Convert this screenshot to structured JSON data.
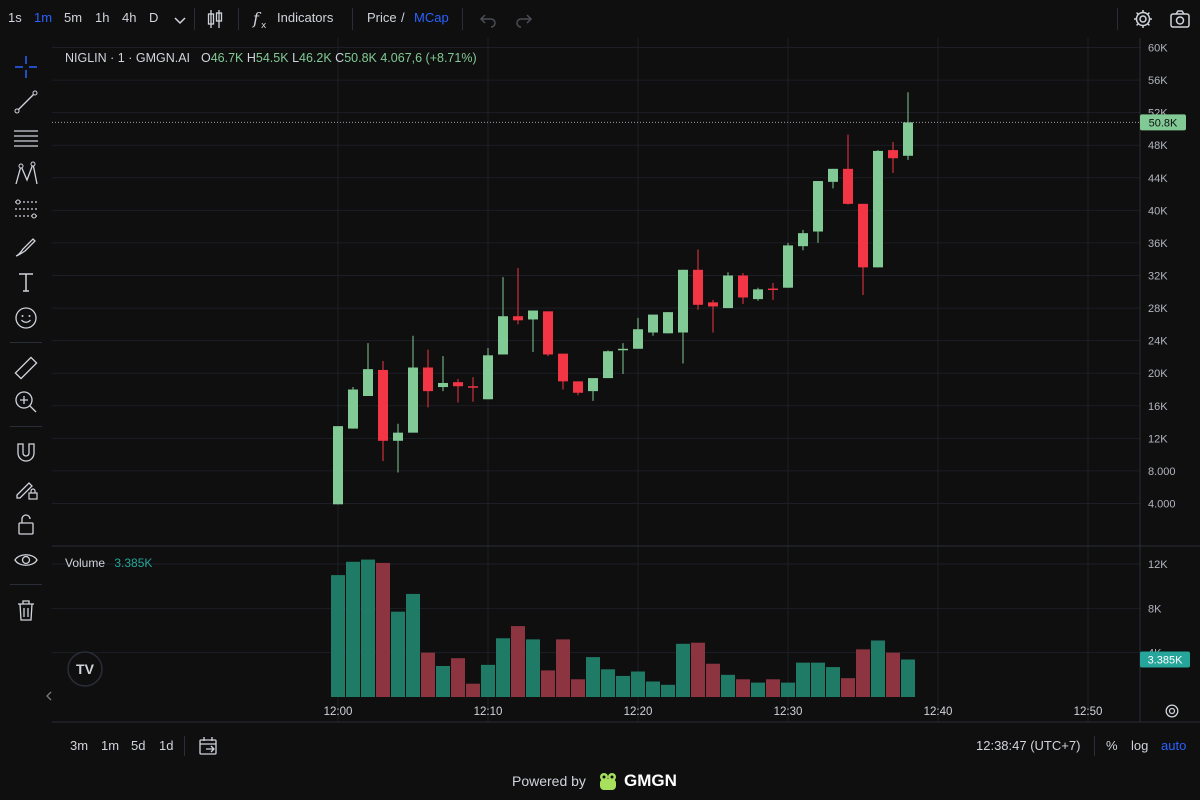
{
  "toolbar": {
    "intervals": [
      "1s",
      "1m",
      "5m",
      "1h",
      "4h",
      "D"
    ],
    "active_interval": "1m",
    "indicators_label": "Indicators",
    "price_label": "Price",
    "price_sep": "/",
    "mcap_label": "MCap"
  },
  "legend": {
    "symbol": "NIGLIN · 1 · GMGN.AI",
    "o_label": "O",
    "o_value": "46.7K",
    "h_label": "H",
    "h_value": "54.5K",
    "l_label": "L",
    "l_value": "46.2K",
    "c_label": "C",
    "c_value": "50.8K",
    "change": "4.067,6 (+8.71%)"
  },
  "volume_legend": {
    "label": "Volume",
    "value": "3.385K"
  },
  "price_badge": "50.8K",
  "volume_badge": "3.385K",
  "bottom": {
    "ranges": [
      "3m",
      "1m",
      "5d",
      "1d"
    ],
    "clock": "12:38:47 (UTC+7)",
    "percent": "%",
    "log": "log",
    "auto": "auto"
  },
  "footer": {
    "powered_by": "Powered by",
    "brand": "GMGN"
  },
  "colors": {
    "up": "#81c995",
    "down": "#f23645",
    "up_vol": "#1f7a66",
    "down_vol": "#8c3440",
    "accent": "#2962ff",
    "bg": "#0f0f0f"
  },
  "chart_data": {
    "type": "candlestick",
    "title": "NIGLIN · 1 · GMGN.AI",
    "x_ticks": [
      "12:00",
      "12:10",
      "12:20",
      "12:30",
      "12:40",
      "12:50"
    ],
    "y_ticks": [
      "60K",
      "56K",
      "52K",
      "48K",
      "44K",
      "40K",
      "36K",
      "32K",
      "28K",
      "24K",
      "20K",
      "16K",
      "12K",
      "8.000",
      "4.000"
    ],
    "y_range": [
      0,
      61000
    ],
    "volume_ticks": [
      "12K",
      "8K",
      "4K"
    ],
    "volume_range": [
      0,
      12600
    ],
    "last_price": 50800,
    "candles": [
      {
        "t": "12:00",
        "o": 3900,
        "h": 13500,
        "l": 3900,
        "c": 13500,
        "v": 11000
      },
      {
        "t": "12:01",
        "o": 13200,
        "h": 18300,
        "l": 13200,
        "c": 18000,
        "v": 12200
      },
      {
        "t": "12:02",
        "o": 17200,
        "h": 23700,
        "l": 17200,
        "c": 20500,
        "v": 12400
      },
      {
        "t": "12:03",
        "o": 20400,
        "h": 21500,
        "l": 9200,
        "c": 11700,
        "v": 12100
      },
      {
        "t": "12:04",
        "o": 11700,
        "h": 13800,
        "l": 7800,
        "c": 12700,
        "v": 7700
      },
      {
        "t": "12:05",
        "o": 12700,
        "h": 24600,
        "l": 12700,
        "c": 20700,
        "v": 9300
      },
      {
        "t": "12:06",
        "o": 20700,
        "h": 22900,
        "l": 15800,
        "c": 17800,
        "v": 4000
      },
      {
        "t": "12:07",
        "o": 18300,
        "h": 22100,
        "l": 17800,
        "c": 18800,
        "v": 2800
      },
      {
        "t": "12:08",
        "o": 18900,
        "h": 19300,
        "l": 16400,
        "c": 18400,
        "v": 3500
      },
      {
        "t": "12:09",
        "o": 18400,
        "h": 19500,
        "l": 16500,
        "c": 18300,
        "v": 1200
      },
      {
        "t": "12:10",
        "o": 16800,
        "h": 23100,
        "l": 16800,
        "c": 22200,
        "v": 2900
      },
      {
        "t": "12:11",
        "o": 22300,
        "h": 31800,
        "l": 22300,
        "c": 27000,
        "v": 5300
      },
      {
        "t": "12:12",
        "o": 27000,
        "h": 32900,
        "l": 26000,
        "c": 26500,
        "v": 6400
      },
      {
        "t": "12:13",
        "o": 26600,
        "h": 27700,
        "l": 22600,
        "c": 27700,
        "v": 5200
      },
      {
        "t": "12:14",
        "o": 27600,
        "h": 27600,
        "l": 22100,
        "c": 22300,
        "v": 2400
      },
      {
        "t": "12:15",
        "o": 22400,
        "h": 22400,
        "l": 18000,
        "c": 19000,
        "v": 5200
      },
      {
        "t": "12:16",
        "o": 19000,
        "h": 19000,
        "l": 17300,
        "c": 17600,
        "v": 1600
      },
      {
        "t": "12:17",
        "o": 17800,
        "h": 19300,
        "l": 16600,
        "c": 19400,
        "v": 3600
      },
      {
        "t": "12:18",
        "o": 19400,
        "h": 22800,
        "l": 19400,
        "c": 22700,
        "v": 2500
      },
      {
        "t": "12:19",
        "o": 22900,
        "h": 23700,
        "l": 19900,
        "c": 23000,
        "v": 1900
      },
      {
        "t": "12:20",
        "o": 23000,
        "h": 26800,
        "l": 23000,
        "c": 25400,
        "v": 2300
      },
      {
        "t": "12:21",
        "o": 25000,
        "h": 27000,
        "l": 24600,
        "c": 27200,
        "v": 1400
      },
      {
        "t": "12:22",
        "o": 24900,
        "h": 27500,
        "l": 24900,
        "c": 27500,
        "v": 1100
      },
      {
        "t": "12:23",
        "o": 25000,
        "h": 32700,
        "l": 21200,
        "c": 32700,
        "v": 4800
      },
      {
        "t": "12:24",
        "o": 32700,
        "h": 35200,
        "l": 27800,
        "c": 28400,
        "v": 4900
      },
      {
        "t": "12:25",
        "o": 28700,
        "h": 29000,
        "l": 25000,
        "c": 28200,
        "v": 3000
      },
      {
        "t": "12:26",
        "o": 28000,
        "h": 32400,
        "l": 28000,
        "c": 32000,
        "v": 2000
      },
      {
        "t": "12:27",
        "o": 32000,
        "h": 32300,
        "l": 28500,
        "c": 29300,
        "v": 1600
      },
      {
        "t": "12:28",
        "o": 29100,
        "h": 30500,
        "l": 28900,
        "c": 30300,
        "v": 1300
      },
      {
        "t": "12:29",
        "o": 30400,
        "h": 31100,
        "l": 29000,
        "c": 30300,
        "v": 1600
      },
      {
        "t": "12:30",
        "o": 30500,
        "h": 36000,
        "l": 30500,
        "c": 35700,
        "v": 1300
      },
      {
        "t": "12:31",
        "o": 35600,
        "h": 37600,
        "l": 35100,
        "c": 37200,
        "v": 3100
      },
      {
        "t": "12:32",
        "o": 37400,
        "h": 43600,
        "l": 36000,
        "c": 43600,
        "v": 3100
      },
      {
        "t": "12:33",
        "o": 43500,
        "h": 45100,
        "l": 42700,
        "c": 45100,
        "v": 2700
      },
      {
        "t": "12:34",
        "o": 45100,
        "h": 49300,
        "l": 40700,
        "c": 40800,
        "v": 1700
      },
      {
        "t": "12:35",
        "o": 40800,
        "h": 40800,
        "l": 29600,
        "c": 33000,
        "v": 4300
      },
      {
        "t": "12:36",
        "o": 33000,
        "h": 47400,
        "l": 33000,
        "c": 47300,
        "v": 5100
      },
      {
        "t": "12:37",
        "o": 47400,
        "h": 48400,
        "l": 44600,
        "c": 46400,
        "v": 4000
      },
      {
        "t": "12:38",
        "o": 46700,
        "h": 54500,
        "l": 46200,
        "c": 50800,
        "v": 3385
      }
    ]
  }
}
